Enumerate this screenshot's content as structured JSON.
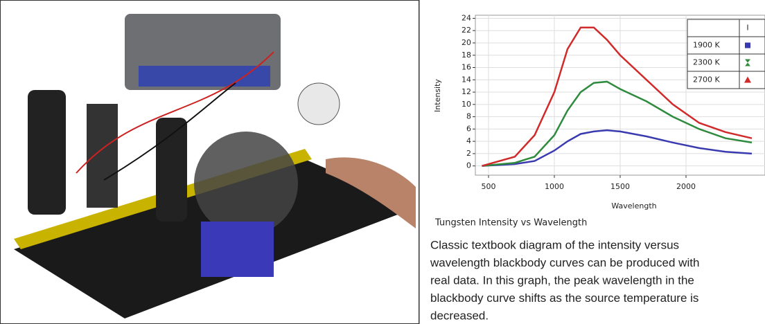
{
  "chart_data": {
    "type": "line",
    "xlabel": "Wavelength",
    "ylabel": "Intensity",
    "title": "Tungsten  Intensity vs Wavelength",
    "x": [
      450,
      700,
      850,
      1000,
      1100,
      1200,
      1300,
      1400,
      1500,
      1700,
      1900,
      2100,
      2300,
      2500
    ],
    "series": [
      {
        "name": "1900 K",
        "color": "#3a3ab0",
        "marker": "square",
        "values": [
          0,
          0.3,
          0.8,
          2.5,
          4,
          5.2,
          5.6,
          5.8,
          5.6,
          4.8,
          3.8,
          2.9,
          2.3,
          2
        ]
      },
      {
        "name": "2300 K",
        "color": "#2e8b3e",
        "marker": "hourglass",
        "values": [
          0,
          0.5,
          1.5,
          5,
          9,
          12,
          13.5,
          13.7,
          12.5,
          10.5,
          8,
          6,
          4.5,
          3.8
        ]
      },
      {
        "name": "2700 K",
        "color": "#d02a2a",
        "marker": "triangle",
        "values": [
          0,
          1.5,
          5,
          12,
          19,
          22.5,
          22.5,
          20.5,
          18,
          14,
          10,
          7,
          5.5,
          4.5
        ]
      }
    ],
    "legend_header": "I",
    "xlim": [
      400,
      2600
    ],
    "xticks": [
      500,
      1000,
      1500,
      2000
    ],
    "ylim": [
      -1.5,
      24.5
    ],
    "yticks": [
      0,
      2,
      4,
      6,
      8,
      10,
      12,
      14,
      16,
      18,
      20,
      22,
      24
    ],
    "grid": true,
    "legend": "upper right"
  },
  "caption_lines": [
    "Classic textbook diagram of the intensity versus",
    "wavelength blackbody curves can be produced with",
    "real data. In this graph, the peak wavelength in the",
    "blackbody curve shifts as the source temperature is",
    "decreased."
  ]
}
